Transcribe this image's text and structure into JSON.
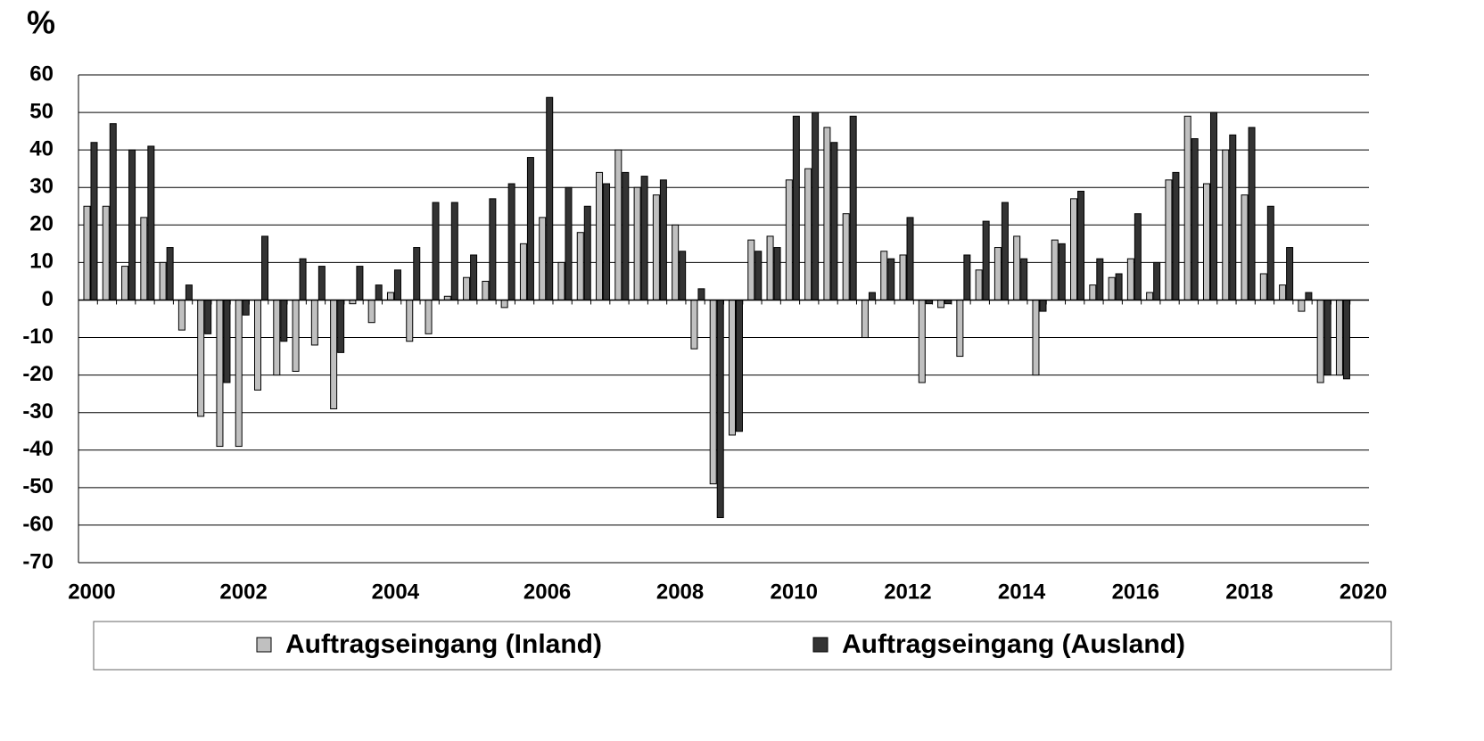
{
  "chart_data": {
    "type": "bar",
    "title": "%",
    "categories": [
      "2000",
      null,
      null,
      null,
      null,
      null,
      null,
      null,
      "2002",
      null,
      null,
      null,
      null,
      null,
      null,
      null,
      "2004",
      null,
      null,
      null,
      null,
      null,
      null,
      null,
      "2006",
      null,
      null,
      null,
      null,
      null,
      null,
      "2008",
      null,
      null,
      null,
      null,
      null,
      "2010",
      null,
      null,
      null,
      null,
      null,
      "2012",
      null,
      null,
      null,
      null,
      null,
      "2014",
      null,
      null,
      null,
      null,
      null,
      "2016",
      null,
      null,
      null,
      null,
      null,
      "2018",
      null,
      null,
      null,
      null,
      null,
      "2020"
    ],
    "series": [
      {
        "name": "Auftragseingang (Inland)",
        "color": "#c0c0c0",
        "values": [
          25,
          25,
          9,
          22,
          10,
          -8,
          -31,
          -39,
          -39,
          -24,
          -20,
          -19,
          -12,
          -29,
          -1,
          -6,
          2,
          -11,
          -9,
          1,
          6,
          5,
          -2,
          15,
          22,
          10,
          18,
          34,
          40,
          30,
          28,
          20,
          -13,
          -49,
          -36,
          16,
          17,
          32,
          35,
          46,
          23,
          -10,
          13,
          12,
          -22,
          -2,
          -15,
          8,
          14,
          17,
          -20,
          16,
          27,
          4,
          6,
          11,
          2,
          32,
          49,
          31,
          40,
          28,
          7,
          4,
          -3,
          -22,
          -20,
          null
        ]
      },
      {
        "name": "Auftragseingang (Ausland)",
        "color": "#333333",
        "values": [
          42,
          47,
          40,
          41,
          14,
          4,
          -9,
          -22,
          -4,
          17,
          -11,
          11,
          9,
          -14,
          9,
          4,
          8,
          14,
          26,
          26,
          12,
          27,
          31,
          38,
          54,
          30,
          25,
          31,
          34,
          33,
          32,
          13,
          3,
          -58,
          -35,
          13,
          14,
          49,
          50,
          42,
          49,
          2,
          11,
          22,
          -1,
          -1,
          12,
          21,
          26,
          11,
          -3,
          15,
          29,
          11,
          7,
          23,
          10,
          34,
          43,
          50,
          44,
          46,
          25,
          14,
          2,
          -20,
          -21,
          null
        ]
      }
    ],
    "ylim": [
      -70,
      60
    ],
    "yticks": [
      -70,
      -60,
      -50,
      -40,
      -30,
      -20,
      -10,
      0,
      10,
      20,
      30,
      40,
      50,
      60
    ],
    "grid": true
  }
}
